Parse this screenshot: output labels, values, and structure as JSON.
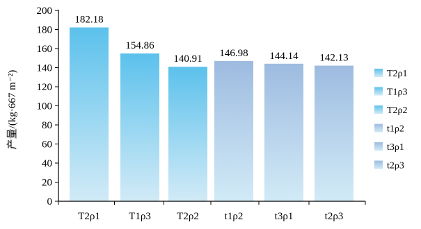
{
  "chart_data": {
    "type": "bar",
    "title": "",
    "xlabel": "",
    "ylabel": "产量/(kg·667 m⁻²)",
    "categories": [
      "T2ρ1",
      "T1ρ3",
      "T2ρ2",
      "t1ρ2",
      "t3ρ1",
      "t2ρ3"
    ],
    "values": [
      182.18,
      154.86,
      140.91,
      146.98,
      144.14,
      142.13
    ],
    "value_labels": [
      "182.18",
      "154.86",
      "140.91",
      "146.98",
      "144.14",
      "142.13"
    ],
    "bar_colors": [
      "#5bc1ec",
      "#5bc1ec",
      "#5bc1ec",
      "#9dbbe0",
      "#9dbbe0",
      "#9dbbe0"
    ],
    "bar_fade_color": "#cfe9f6",
    "ylim": [
      0,
      200
    ],
    "yticks": [
      0,
      20,
      40,
      60,
      80,
      100,
      120,
      140,
      160,
      180,
      200
    ],
    "grid": false,
    "legend": {
      "placement": "right",
      "entries": [
        "T2ρ1",
        "T1ρ3",
        "T2ρ2",
        "t1ρ2",
        "t3ρ1",
        "t2ρ3"
      ]
    }
  }
}
